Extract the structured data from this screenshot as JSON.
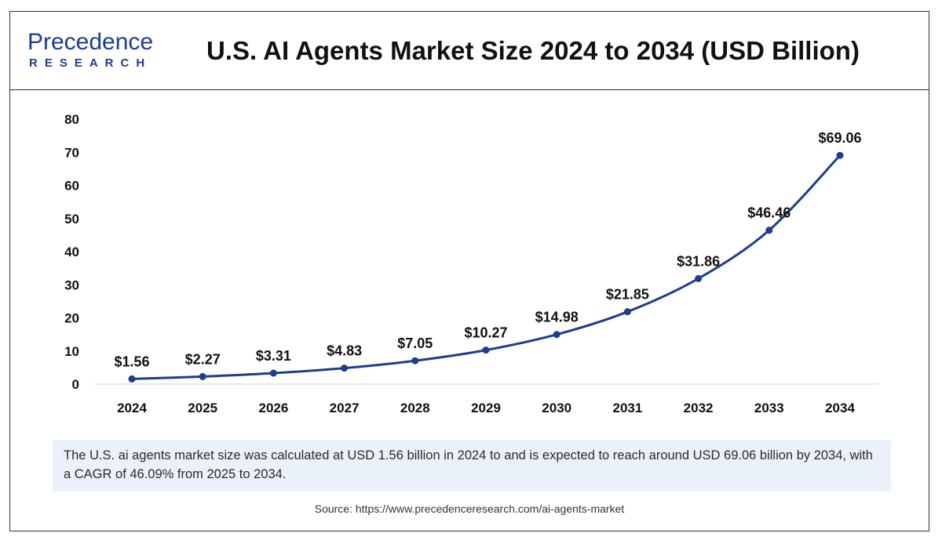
{
  "logo": {
    "name": "Precedence",
    "sub": "RESEARCH"
  },
  "title": "U.S. AI Agents Market Size 2024 to 2034 (USD Billion)",
  "caption": "The U.S. ai agents market size was calculated at USD 1.56  billion in 2024 to and is expected to reach around USD 69.06 billion by 2034, with a CAGR of 46.09% from 2025 to 2034.",
  "source": "Source: https://www.precedenceresearch.com/ai-agents-market",
  "colors": {
    "line": "#1f3c8f",
    "marker": "#1f3c8f",
    "caption_bg": "#eaf1fb"
  },
  "chart_data": {
    "type": "line",
    "title": "U.S. AI Agents Market Size 2024 to 2034 (USD Billion)",
    "xlabel": "",
    "ylabel": "",
    "categories": [
      "2024",
      "2025",
      "2026",
      "2027",
      "2028",
      "2029",
      "2030",
      "2031",
      "2032",
      "2033",
      "2034"
    ],
    "series": [
      {
        "values": [
          1.56,
          2.27,
          3.31,
          4.83,
          7.05,
          10.27,
          14.98,
          21.85,
          31.86,
          46.46,
          69.06
        ]
      }
    ],
    "data_labels": [
      "$1.56",
      "$2.27",
      "$3.31",
      "$4.83",
      "$7.05",
      "$10.27",
      "$14.98",
      "$21.85",
      "$31.86",
      "$46.46",
      "$69.06"
    ],
    "ylim": [
      0,
      80
    ],
    "yticks": [
      0,
      10,
      20,
      30,
      40,
      50,
      60,
      70,
      80
    ],
    "grid": false,
    "legend": "none"
  }
}
